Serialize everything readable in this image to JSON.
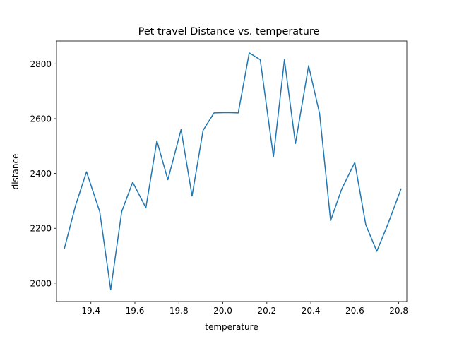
{
  "chart_data": {
    "type": "line",
    "title": "Pet travel Distance vs. temperature",
    "xlabel": "temperature",
    "ylabel": "distance",
    "xlim": [
      19.2435,
      20.8365
    ],
    "ylim": [
      1932.7,
      2883.3
    ],
    "xticks": [
      19.4,
      19.6,
      19.8,
      20.0,
      20.2,
      20.4,
      20.6,
      20.8
    ],
    "xtick_labels": [
      "19.4",
      "19.6",
      "19.8",
      "20.0",
      "20.2",
      "20.4",
      "20.6",
      "20.8"
    ],
    "yticks": [
      2000,
      2200,
      2400,
      2600,
      2800
    ],
    "ytick_labels": [
      "2000",
      "2200",
      "2400",
      "2600",
      "2800"
    ],
    "grid": false,
    "legend": "none",
    "series": [
      {
        "color": "#1f77b4",
        "x": [
          19.28,
          19.33,
          19.38,
          19.44,
          19.49,
          19.54,
          19.59,
          19.65,
          19.7,
          19.75,
          19.81,
          19.86,
          19.91,
          19.96,
          20.02,
          20.07,
          20.12,
          20.17,
          20.23,
          20.28,
          20.33,
          20.39,
          20.44,
          20.49,
          20.54,
          20.6,
          20.65,
          20.7,
          20.75,
          20.81
        ],
        "y": [
          2128,
          2283,
          2406,
          2261,
          1976,
          2261,
          2368,
          2275,
          2519,
          2377,
          2560,
          2318,
          2557,
          2621,
          2622,
          2621,
          2840,
          2815,
          2461,
          2815,
          2509,
          2793,
          2618,
          2228,
          2342,
          2440,
          2213,
          2116,
          2214,
          2343
        ]
      }
    ]
  }
}
